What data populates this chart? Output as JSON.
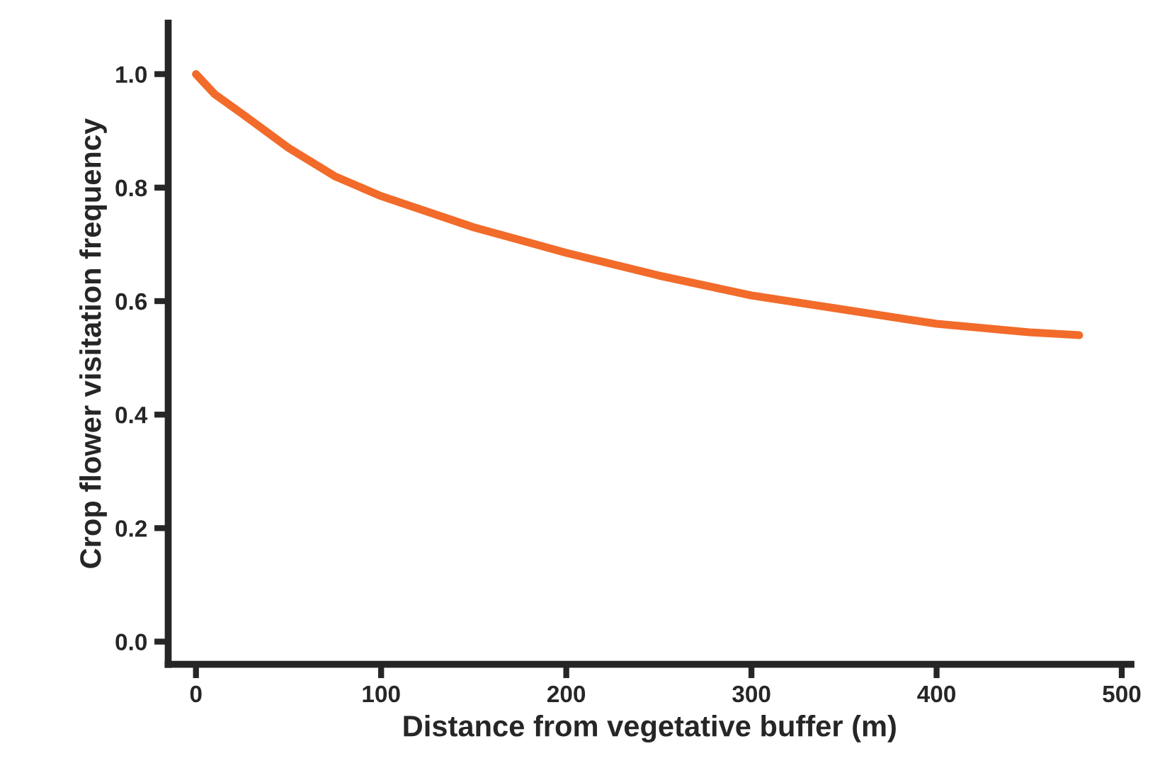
{
  "chart_data": {
    "type": "line",
    "xlabel": "Distance from vegetative buffer (m)",
    "ylabel": "Crop flower visitation frequency",
    "x": [
      0,
      10,
      25,
      50,
      75,
      100,
      150,
      200,
      250,
      300,
      350,
      400,
      450,
      477
    ],
    "series": [
      {
        "color": "#f26b2a",
        "values": [
          1.0,
          0.965,
          0.93,
          0.87,
          0.82,
          0.785,
          0.73,
          0.685,
          0.645,
          0.61,
          0.585,
          0.56,
          0.545,
          0.54
        ]
      }
    ],
    "xlim": [
      -15,
      505
    ],
    "ylim": [
      -0.04,
      1.09
    ],
    "xticks": [
      0,
      100,
      200,
      300,
      400,
      500
    ],
    "yticks": [
      {
        "value": 0,
        "label": "0.0"
      },
      {
        "value": 0.2,
        "label": "0.2"
      },
      {
        "value": 0.4,
        "label": "0.4"
      },
      {
        "value": 0.6,
        "label": "0.6"
      },
      {
        "value": 0.8,
        "label": "0.8"
      },
      {
        "value": 1.0,
        "label": "1.0"
      }
    ],
    "grid": false,
    "legend": false
  }
}
